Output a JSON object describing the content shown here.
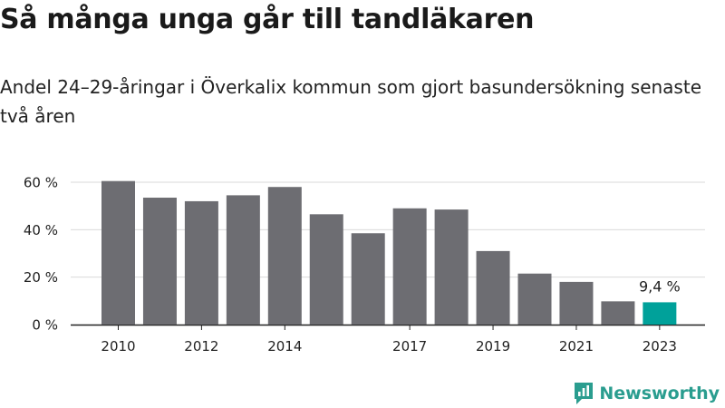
{
  "header": {
    "title": "Så många unga går till tandläkaren",
    "subtitle": "Andel 24–29-åringar i Överkalix kommun som gjort basundersökning senaste två åren"
  },
  "chart_data": {
    "type": "bar",
    "title": "Så många unga går till tandläkaren",
    "subtitle": "Andel 24–29-åringar i Överkalix kommun som gjort basundersökning senaste två åren",
    "xlabel": "",
    "ylabel": "",
    "categories": [
      "2010",
      "2011",
      "2012",
      "2013",
      "2014",
      "2015",
      "2016",
      "2017",
      "2018",
      "2019",
      "2020",
      "2021",
      "2022",
      "2023"
    ],
    "x_tick_labels": [
      "2010",
      "",
      "2012",
      "",
      "2014",
      "",
      "",
      "2017",
      "",
      "2019",
      "",
      "2021",
      "",
      "2023"
    ],
    "values": [
      60.5,
      53.5,
      52,
      54.5,
      58,
      46.5,
      38.5,
      49,
      48.5,
      31,
      21.5,
      18,
      9.8,
      9.4
    ],
    "y_ticks": [
      0,
      20,
      40,
      60
    ],
    "y_tick_labels": [
      "0 %",
      "20 %",
      "40 %",
      "60 %"
    ],
    "ylim": [
      0,
      60
    ],
    "grid": true,
    "legend": "none",
    "highlight": {
      "index": 13,
      "label": "9,4 %"
    },
    "colors": {
      "bar": "#6d6d72",
      "highlight": "#00a19a",
      "grid": "#d9d9d9",
      "axis": "#222222"
    }
  },
  "branding": {
    "logo_text": "Newsworthy",
    "logo_icon": "chart-bubble-icon",
    "logo_color": "#2a9d8f"
  }
}
